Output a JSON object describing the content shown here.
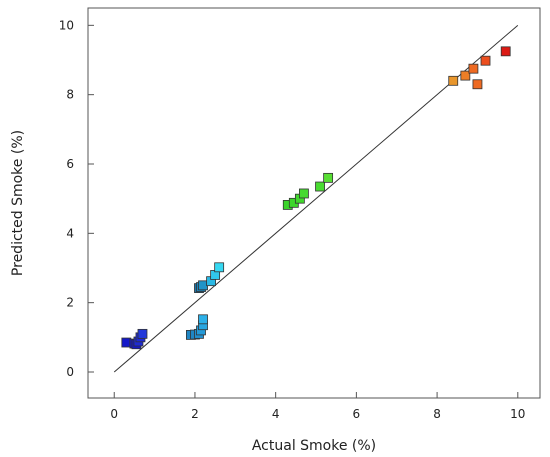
{
  "chart_data": {
    "type": "scatter",
    "title": "",
    "xlabel": "Actual Smoke (%)",
    "ylabel": "Predicted Smoke (%)",
    "xlim": [
      -0.65,
      10.55
    ],
    "ylim": [
      -0.75,
      10.5
    ],
    "x_ticks": [
      0,
      2,
      4,
      6,
      8,
      10
    ],
    "y_ticks": [
      0,
      2,
      4,
      6,
      8,
      10
    ],
    "x_tick_labels": [
      "0",
      "2",
      "4",
      "6",
      "8",
      "10"
    ],
    "y_tick_labels": [
      "0",
      "2",
      "4",
      "6",
      "8",
      "10"
    ],
    "grid": false,
    "reference_line": {
      "from": [
        0,
        0
      ],
      "to": [
        10,
        10
      ],
      "color": "#333333"
    },
    "marker": "square",
    "points": [
      {
        "x": 0.3,
        "y": 0.85,
        "color": "#1418c8"
      },
      {
        "x": 0.5,
        "y": 0.82,
        "color": "#1418c8"
      },
      {
        "x": 0.55,
        "y": 0.8,
        "color": "#1418c8"
      },
      {
        "x": 0.6,
        "y": 0.88,
        "color": "#1e2ad2"
      },
      {
        "x": 0.65,
        "y": 1.0,
        "color": "#1e2ad2"
      },
      {
        "x": 0.7,
        "y": 1.1,
        "color": "#2238da"
      },
      {
        "x": 1.9,
        "y": 1.07,
        "color": "#1f86c4"
      },
      {
        "x": 2.0,
        "y": 1.08,
        "color": "#1f86c4"
      },
      {
        "x": 2.1,
        "y": 1.1,
        "color": "#2290d0"
      },
      {
        "x": 2.15,
        "y": 1.2,
        "color": "#259ad8"
      },
      {
        "x": 2.2,
        "y": 1.35,
        "color": "#28a6e0"
      },
      {
        "x": 2.2,
        "y": 1.52,
        "color": "#2cb0e8"
      },
      {
        "x": 2.1,
        "y": 2.42,
        "color": "#1c74a8"
      },
      {
        "x": 2.15,
        "y": 2.45,
        "color": "#1c82b8"
      },
      {
        "x": 2.2,
        "y": 2.5,
        "color": "#2094c8"
      },
      {
        "x": 2.4,
        "y": 2.62,
        "color": "#2ab8e4"
      },
      {
        "x": 2.5,
        "y": 2.8,
        "color": "#30c8ec"
      },
      {
        "x": 2.6,
        "y": 3.02,
        "color": "#36d8f2"
      },
      {
        "x": 4.3,
        "y": 4.82,
        "color": "#3ad42a"
      },
      {
        "x": 4.45,
        "y": 4.88,
        "color": "#3ed62c"
      },
      {
        "x": 4.6,
        "y": 5.0,
        "color": "#42d82e"
      },
      {
        "x": 4.7,
        "y": 5.15,
        "color": "#46da30"
      },
      {
        "x": 5.1,
        "y": 5.35,
        "color": "#4adc32"
      },
      {
        "x": 5.3,
        "y": 5.6,
        "color": "#58de34"
      },
      {
        "x": 8.4,
        "y": 8.4,
        "color": "#e8962c"
      },
      {
        "x": 8.7,
        "y": 8.55,
        "color": "#ec7e26"
      },
      {
        "x": 8.9,
        "y": 8.75,
        "color": "#ee6a22"
      },
      {
        "x": 9.0,
        "y": 8.3,
        "color": "#ee6a22"
      },
      {
        "x": 9.2,
        "y": 8.98,
        "color": "#ec4e1e"
      },
      {
        "x": 9.7,
        "y": 9.25,
        "color": "#dc1a14"
      }
    ]
  }
}
